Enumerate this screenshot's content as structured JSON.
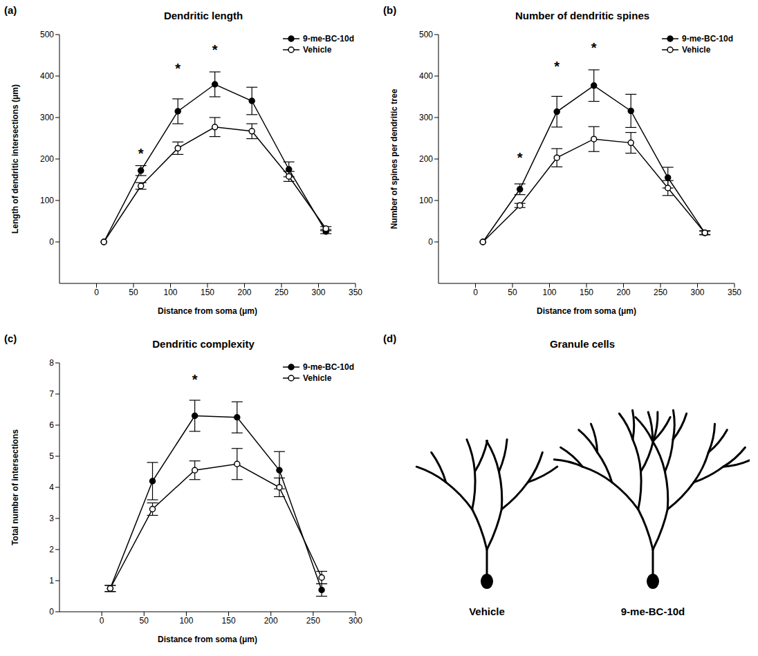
{
  "chart_data": [
    {
      "type": "line",
      "panel_label": "(a)",
      "title": "Dendritic length",
      "x_label": "Distance from soma (μm)",
      "y_label": "Length of dendritic intersections (μm)",
      "x": [
        10,
        60,
        110,
        160,
        210,
        260,
        310
      ],
      "xlim": [
        -50,
        350
      ],
      "xticks": [
        0,
        50,
        100,
        150,
        200,
        250,
        300,
        350
      ],
      "ylim": [
        -100,
        500
      ],
      "yticks": [
        0,
        100,
        200,
        300,
        400,
        500
      ],
      "legend": "upper right",
      "grid": false,
      "series": [
        {
          "name": "9-me-BC-10d",
          "color": "#000000",
          "marker": "filled",
          "values": [
            0,
            172,
            315,
            380,
            340,
            175,
            25
          ],
          "errors": [
            0,
            12,
            30,
            30,
            33,
            18,
            5
          ]
        },
        {
          "name": "Vehicle",
          "color": "#000000",
          "marker": "open",
          "values": [
            0,
            135,
            226,
            277,
            267,
            158,
            32
          ],
          "errors": [
            0,
            8,
            15,
            23,
            18,
            12,
            5
          ]
        }
      ],
      "annotations": [
        {
          "x": 60,
          "y": 215,
          "text": "*"
        },
        {
          "x": 110,
          "y": 420,
          "text": "*"
        },
        {
          "x": 160,
          "y": 465,
          "text": "*"
        }
      ]
    },
    {
      "type": "line",
      "panel_label": "(b)",
      "title": "Number of dendritic spines",
      "x_label": "Distance from soma (μm)",
      "y_label": "Number of spines per dendritic tree",
      "x": [
        10,
        60,
        110,
        160,
        210,
        260,
        310
      ],
      "xlim": [
        -50,
        350
      ],
      "xticks": [
        0,
        50,
        100,
        150,
        200,
        250,
        300,
        350
      ],
      "ylim": [
        -100,
        500
      ],
      "yticks": [
        0,
        100,
        200,
        300,
        400,
        500
      ],
      "legend": "upper right",
      "grid": false,
      "series": [
        {
          "name": "9-me-BC-10d",
          "color": "#000000",
          "marker": "filled",
          "values": [
            0,
            127,
            314,
            377,
            316,
            155,
            22
          ],
          "errors": [
            0,
            13,
            37,
            38,
            40,
            25,
            5
          ]
        },
        {
          "name": "Vehicle",
          "color": "#000000",
          "marker": "open",
          "values": [
            0,
            88,
            203,
            248,
            239,
            130,
            22
          ],
          "errors": [
            0,
            5,
            22,
            30,
            25,
            18,
            4
          ]
        }
      ],
      "annotations": [
        {
          "x": 60,
          "y": 205,
          "text": "*"
        },
        {
          "x": 110,
          "y": 425,
          "text": "*"
        },
        {
          "x": 160,
          "y": 470,
          "text": "*"
        }
      ]
    },
    {
      "type": "line",
      "panel_label": "(c)",
      "title": "Dendritic complexity",
      "x_label": "Distance from soma (μm)",
      "y_label": "Total number of intersections",
      "x": [
        10,
        60,
        110,
        160,
        210,
        260
      ],
      "xlim": [
        -50,
        300
      ],
      "xticks": [
        0,
        50,
        100,
        150,
        200,
        250,
        300
      ],
      "ylim": [
        0,
        8
      ],
      "yticks": [
        0,
        1,
        2,
        3,
        4,
        5,
        6,
        7,
        8
      ],
      "legend": "upper right",
      "grid": false,
      "series": [
        {
          "name": "9-me-BC-10d",
          "color": "#000000",
          "marker": "filled",
          "values": [
            0.75,
            4.2,
            6.3,
            6.25,
            4.55,
            0.7
          ],
          "errors": [
            0.1,
            0.6,
            0.5,
            0.5,
            0.6,
            0.2
          ]
        },
        {
          "name": "Vehicle",
          "color": "#000000",
          "marker": "open",
          "values": [
            0.75,
            3.3,
            4.55,
            4.75,
            4.0,
            1.1
          ],
          "errors": [
            0.1,
            0.2,
            0.3,
            0.5,
            0.3,
            0.2
          ]
        }
      ],
      "annotations": [
        {
          "x": 110,
          "y": 7.5,
          "text": "*"
        }
      ]
    },
    {
      "type": "illustration",
      "panel_label": "(d)",
      "title": "Granule cells",
      "labels": [
        "Vehicle",
        "9-me-BC-10d"
      ]
    }
  ]
}
